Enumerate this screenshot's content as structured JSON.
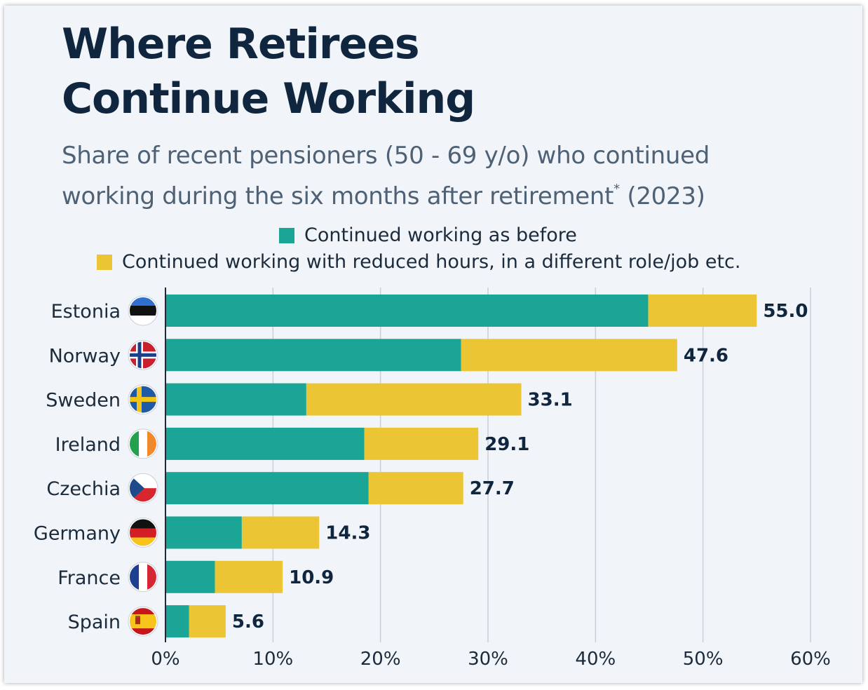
{
  "chart_data": {
    "type": "bar",
    "orientation": "horizontal",
    "stacked": true,
    "title": [
      "Where Retirees",
      "Continue Working"
    ],
    "subtitle": [
      "Share of recent pensioners (50 - 69 y/o) who continued",
      "working during the six months after retirement"
    ],
    "subtitle_footnote_mark": "*",
    "subtitle_year": "(2023)",
    "categories": [
      "Estonia",
      "Norway",
      "Sweden",
      "Ireland",
      "Czechia",
      "Germany",
      "France",
      "Spain"
    ],
    "series": [
      {
        "name": "Continued working as before",
        "color": "#1aa596",
        "values": [
          44.9,
          27.5,
          13.1,
          18.5,
          18.9,
          7.1,
          4.6,
          2.2
        ]
      },
      {
        "name": "Continued working with reduced hours, in a different role/job etc.",
        "color": "#ebc533",
        "values": [
          10.1,
          20.1,
          20.0,
          10.6,
          8.8,
          7.2,
          6.3,
          3.4
        ]
      }
    ],
    "totals": [
      "55.0",
      "47.6",
      "33.1",
      "29.1",
      "27.7",
      "14.3",
      "10.9",
      "5.6"
    ],
    "flags": [
      "estonia-flag-icon",
      "norway-flag-icon",
      "sweden-flag-icon",
      "ireland-flag-icon",
      "czechia-flag-icon",
      "germany-flag-icon",
      "france-flag-icon",
      "spain-flag-icon"
    ],
    "xlim": [
      0,
      60
    ],
    "xticks": [
      0,
      10,
      20,
      30,
      40,
      50,
      60
    ],
    "xtick_labels": [
      "0%",
      "10%",
      "20%",
      "30%",
      "40%",
      "50%",
      "60%"
    ],
    "grid": true,
    "legend_position": "top"
  }
}
